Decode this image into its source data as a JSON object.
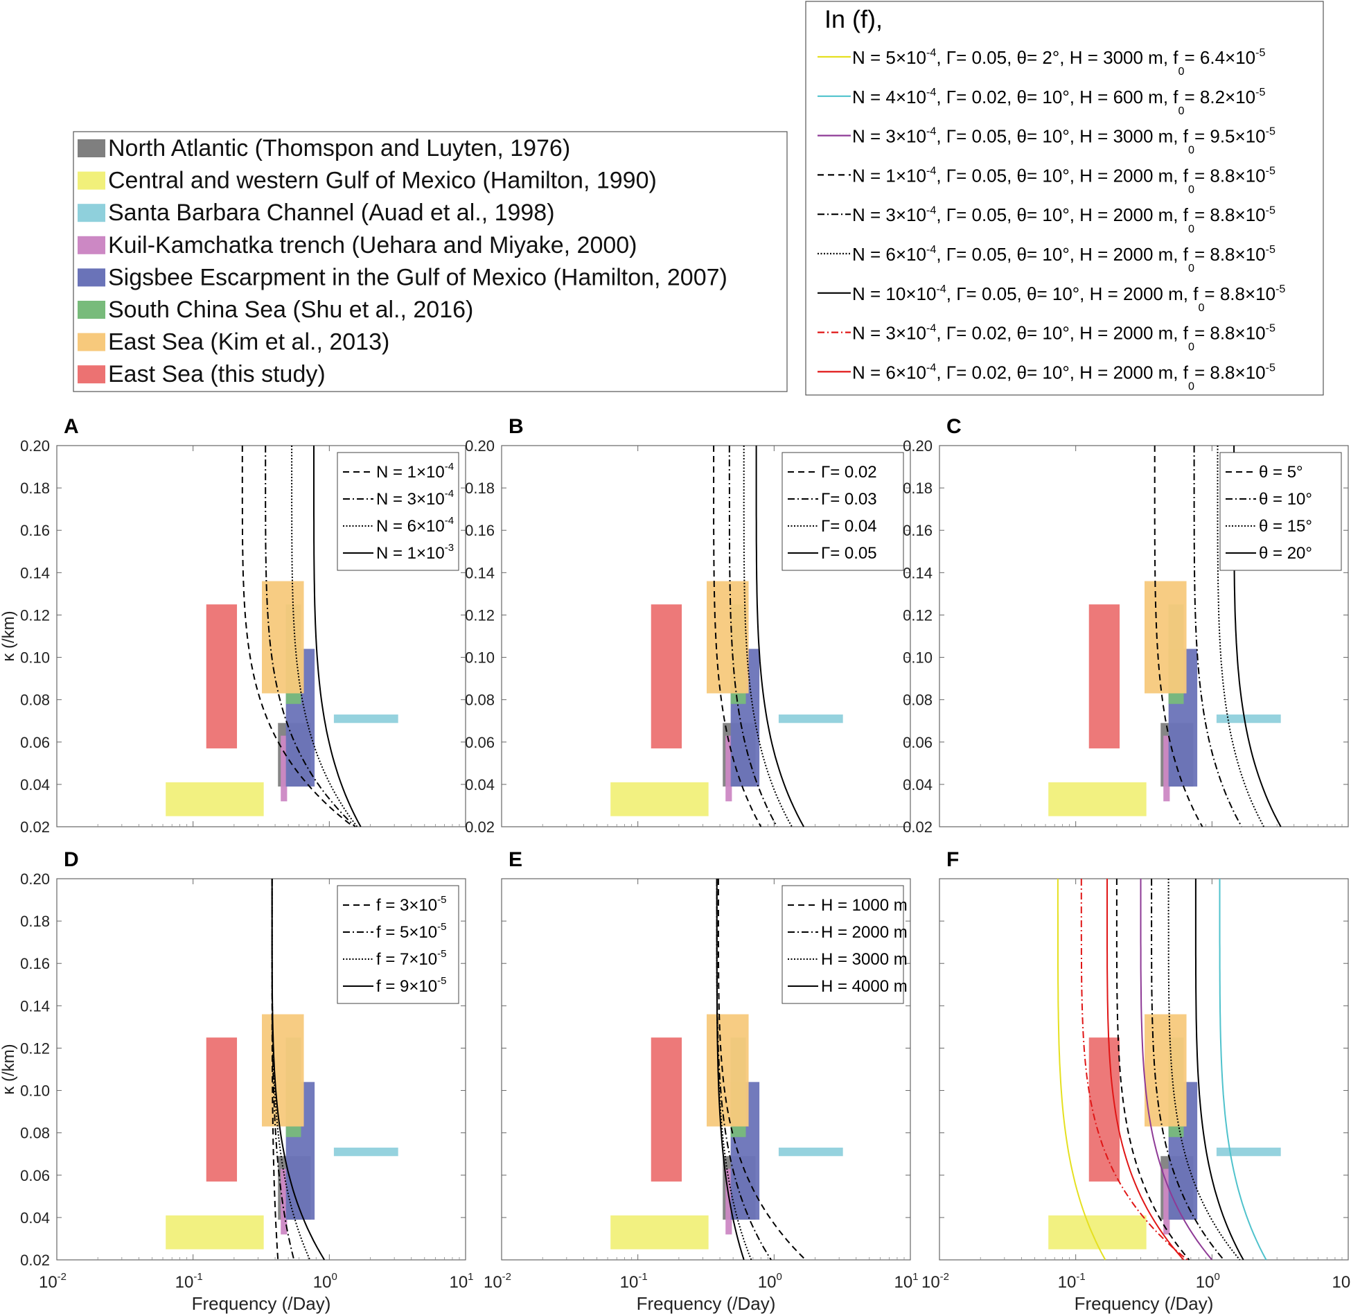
{
  "chart_data": {
    "type": "line",
    "title": "",
    "xlabel": "Frequency (/Day)",
    "ylabel": "κ (/km)",
    "x_scale": "log",
    "xlim": [
      0.01,
      10
    ],
    "ylim": [
      0.02,
      0.2
    ],
    "x_tick_labels": [
      "10",
      "10",
      "10",
      "10"
    ],
    "x_tick_exponents": [
      "-2",
      "-1",
      "0",
      "1"
    ],
    "x_tick_values": [
      0.01,
      0.1,
      1,
      10
    ],
    "y_tick_labels": [
      "0.20",
      "0.18",
      "0.16",
      "0.14",
      "0.12",
      "0.10",
      "0.08",
      "0.06",
      "0.04",
      "0.02"
    ],
    "y_tick_values": [
      0.2,
      0.18,
      0.16,
      0.14,
      0.12,
      0.1,
      0.08,
      0.06,
      0.04,
      0.02
    ],
    "observations": [
      {
        "label": "North Atlantic (Thomspon and Luyten, 1976)",
        "color": "#7f7f7f",
        "x": [
          0.42,
          0.73
        ],
        "y": [
          0.039,
          0.069
        ]
      },
      {
        "label": "Central and western Gulf of Mexico (Hamilton, 1990)",
        "color": "#f1f07a",
        "x": [
          0.063,
          0.33
        ],
        "y": [
          0.025,
          0.041
        ]
      },
      {
        "label": "Santa Barbara Channel (Auad et al., 1998)",
        "color": "#8fd0dc",
        "x": [
          1.08,
          3.2
        ],
        "y": [
          0.069,
          0.073
        ]
      },
      {
        "label": "Kuil-Kamchatka trench (Uehara and Miyake, 2000)",
        "color": "#cc88c4",
        "x": [
          0.44,
          0.49
        ],
        "y": [
          0.032,
          0.063
        ]
      },
      {
        "label": "Sigsbee Escarpment in the Gulf of Mexico (Hamilton, 2007)",
        "color": "#6a73b8",
        "x": [
          0.48,
          0.78
        ],
        "y": [
          0.039,
          0.104
        ]
      },
      {
        "label": "South China Sea (Shu et al., 2016)",
        "color": "#78bb7b",
        "x": [
          0.48,
          0.62
        ],
        "y": [
          0.078,
          0.125
        ]
      },
      {
        "label": "East Sea (Kim et al., 2013)",
        "color": "#f7c97c",
        "x": [
          0.32,
          0.65
        ],
        "y": [
          0.083,
          0.136
        ]
      },
      {
        "label": "East Sea (this study)",
        "color": "#ec7272",
        "x": [
          0.125,
          0.21
        ],
        "y": [
          0.057,
          0.125
        ]
      }
    ],
    "panels": [
      {
        "letter": "A",
        "legend": [
          "N = 1×10",
          "N = 3×10",
          "N = 6×10",
          "N = 1×10"
        ],
        "legend_exp": [
          "-4",
          "-4",
          "-4",
          "-3"
        ],
        "series": [
          {
            "style": "dashed",
            "color": "#000000",
            "x_at_top": 0.23,
            "x_at_bottom": 1.5
          },
          {
            "style": "dashdot",
            "color": "#000000",
            "x_at_top": 0.34,
            "x_at_bottom": 1.55
          },
          {
            "style": "dotted",
            "color": "#000000",
            "x_at_top": 0.53,
            "x_at_bottom": 1.6
          },
          {
            "style": "solid",
            "color": "#000000",
            "x_at_top": 0.77,
            "x_at_bottom": 1.7
          }
        ]
      },
      {
        "letter": "B",
        "legend": [
          "Γ= 0.02",
          "Γ= 0.03",
          "Γ= 0.04",
          "Γ= 0.05"
        ],
        "legend_exp": [
          "",
          "",
          "",
          ""
        ],
        "series": [
          {
            "style": "dashed",
            "color": "#000000",
            "x_at_top": 0.36,
            "x_at_bottom": 0.8
          },
          {
            "style": "dashdot",
            "color": "#000000",
            "x_at_top": 0.47,
            "x_at_bottom": 1.05
          },
          {
            "style": "dotted",
            "color": "#000000",
            "x_at_top": 0.6,
            "x_at_bottom": 1.35
          },
          {
            "style": "solid",
            "color": "#000000",
            "x_at_top": 0.74,
            "x_at_bottom": 1.65
          }
        ]
      },
      {
        "letter": "C",
        "legend": [
          "θ = 5°",
          "θ = 10°",
          "θ = 15°",
          "θ = 20°"
        ],
        "legend_exp": [
          "",
          "",
          "",
          ""
        ],
        "series": [
          {
            "style": "dashed",
            "color": "#000000",
            "x_at_top": 0.38,
            "x_at_bottom": 0.85
          },
          {
            "style": "dashdot",
            "color": "#000000",
            "x_at_top": 0.74,
            "x_at_bottom": 1.65
          },
          {
            "style": "dotted",
            "color": "#000000",
            "x_at_top": 1.1,
            "x_at_bottom": 2.4
          },
          {
            "style": "solid",
            "color": "#000000",
            "x_at_top": 1.45,
            "x_at_bottom": 3.2
          }
        ]
      },
      {
        "letter": "D",
        "legend": [
          "f = 3×10",
          "f = 5×10",
          "f = 7×10",
          "f = 9×10"
        ],
        "legend_exp": [
          "-5",
          "-5",
          "-5",
          "-5"
        ],
        "series": [
          {
            "style": "dashed",
            "color": "#000000",
            "x_at_top": 0.38,
            "x_at_bottom": 0.42
          },
          {
            "style": "dashdot",
            "color": "#000000",
            "x_at_top": 0.38,
            "x_at_bottom": 0.55
          },
          {
            "style": "dotted",
            "color": "#000000",
            "x_at_top": 0.38,
            "x_at_bottom": 0.72
          },
          {
            "style": "solid",
            "color": "#000000",
            "x_at_top": 0.38,
            "x_at_bottom": 0.92
          }
        ]
      },
      {
        "letter": "E",
        "legend": [
          "H = 1000 m",
          "H = 2000 m",
          "H = 3000 m",
          "H = 4000 m"
        ],
        "legend_exp": [
          "",
          "",
          "",
          ""
        ],
        "series": [
          {
            "style": "dashed",
            "color": "#000000",
            "x_at_top": 0.39,
            "x_at_bottom": 1.7
          },
          {
            "style": "dashdot",
            "color": "#000000",
            "x_at_top": 0.38,
            "x_at_bottom": 0.95
          },
          {
            "style": "dotted",
            "color": "#000000",
            "x_at_top": 0.38,
            "x_at_bottom": 0.68
          },
          {
            "style": "solid",
            "color": "#000000",
            "x_at_top": 0.38,
            "x_at_bottom": 0.6
          }
        ]
      },
      {
        "letter": "F",
        "legend": [],
        "legend_exp": [],
        "series": [
          {
            "style": "solid",
            "color": "#e5e020",
            "x_at_top": 0.074,
            "x_at_bottom": 0.165
          },
          {
            "style": "solid",
            "color": "#4fc2cc",
            "x_at_top": 1.14,
            "x_at_bottom": 2.5
          },
          {
            "style": "solid",
            "color": "#8e3a96",
            "x_at_top": 0.3,
            "x_at_bottom": 1.0
          },
          {
            "style": "dashed",
            "color": "#000000",
            "x_at_top": 0.2,
            "x_at_bottom": 0.68
          },
          {
            "style": "dashdot",
            "color": "#000000",
            "x_at_top": 0.36,
            "x_at_bottom": 1.22
          },
          {
            "style": "dotted",
            "color": "#000000",
            "x_at_top": 0.48,
            "x_at_bottom": 1.6
          },
          {
            "style": "solid",
            "color": "#000000",
            "x_at_top": 0.76,
            "x_at_bottom": 1.7
          },
          {
            "style": "dashdot",
            "color": "#e01616",
            "x_at_top": 0.11,
            "x_at_bottom": 0.66
          },
          {
            "style": "solid",
            "color": "#e01616",
            "x_at_top": 0.17,
            "x_at_bottom": 0.62
          }
        ]
      }
    ],
    "f_legend": {
      "title": "In (f),",
      "entries": [
        {
          "style": "solid",
          "color": "#e5e020",
          "parts": [
            "N = 5×10",
            "-4",
            ", Γ= 0.05, θ= 2°, H = 3000 m, f",
            "0",
            "= 6.4×10",
            "-5"
          ]
        },
        {
          "style": "solid",
          "color": "#4fc2cc",
          "parts": [
            "N = 4×10",
            "-4",
            ", Γ= 0.02, θ= 10°, H = 600 m, f",
            "0",
            "= 8.2×10",
            "-5"
          ]
        },
        {
          "style": "solid",
          "color": "#8e3a96",
          "parts": [
            "N = 3×10",
            "-4",
            ", Γ= 0.05, θ= 10°, H = 3000 m, f",
            "0",
            "= 9.5×10",
            "-5"
          ]
        },
        {
          "style": "dashed",
          "color": "#000000",
          "parts": [
            "N = 1×10",
            "-4",
            ", Γ= 0.05, θ= 10°, H = 2000 m, f",
            "0",
            "= 8.8×10",
            "-5"
          ]
        },
        {
          "style": "dashdot",
          "color": "#000000",
          "parts": [
            "N = 3×10",
            "-4",
            ", Γ= 0.05, θ= 10°, H = 2000 m, f",
            "0",
            "= 8.8×10",
            "-5"
          ]
        },
        {
          "style": "dotted",
          "color": "#000000",
          "parts": [
            "N = 6×10",
            "-4",
            ", Γ= 0.05, θ= 10°, H = 2000 m, f",
            "0",
            "= 8.8×10",
            "-5"
          ]
        },
        {
          "style": "solid",
          "color": "#000000",
          "parts": [
            "N = 10×10",
            "-4",
            ", Γ= 0.05, θ= 10°, H = 2000 m, f",
            "0",
            "= 8.8×10",
            "-5"
          ]
        },
        {
          "style": "dashdot",
          "color": "#e01616",
          "parts": [
            "N = 3×10",
            "-4",
            ", Γ= 0.02, θ= 10°, H = 2000 m, f",
            "0",
            "= 8.8×10",
            "-5"
          ]
        },
        {
          "style": "solid",
          "color": "#e01616",
          "parts": [
            "N = 6×10",
            "-4",
            ", Γ= 0.02, θ= 10°, H = 2000 m, f",
            "0",
            "= 8.8×10",
            "-5"
          ]
        }
      ]
    }
  }
}
